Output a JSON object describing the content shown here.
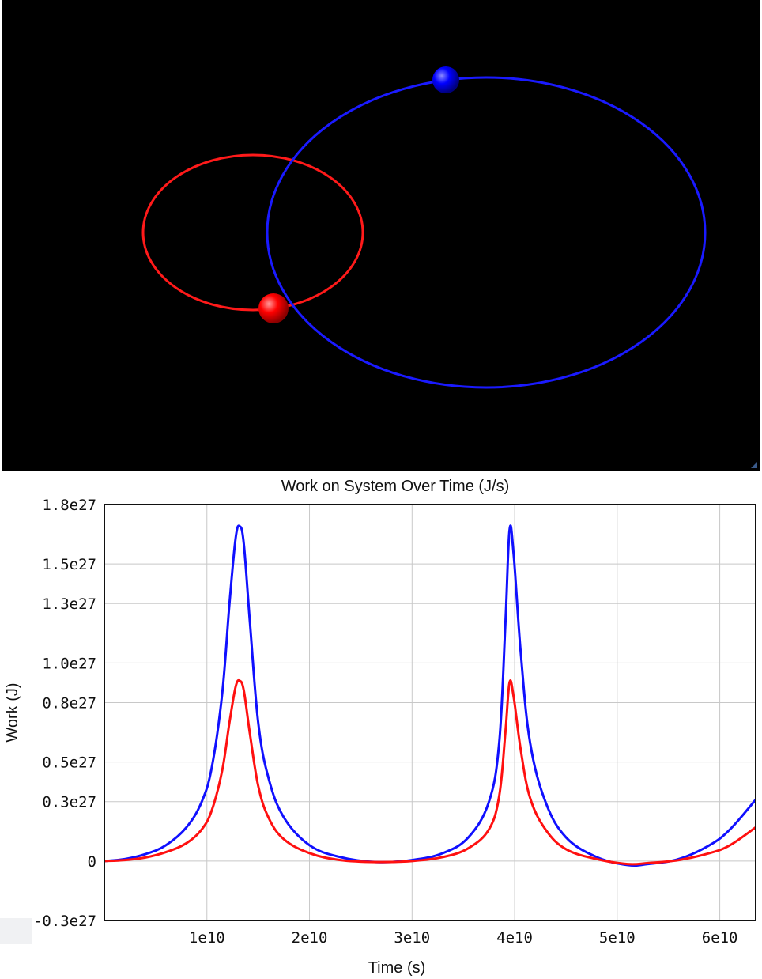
{
  "scene": {
    "background": "#000000",
    "orbits": [
      {
        "name": "red-orbit",
        "color": "#ff1a1a"
      },
      {
        "name": "blue-orbit",
        "color": "#1a1aff"
      }
    ],
    "bodies": [
      {
        "name": "red-body",
        "color": "#ff0000"
      },
      {
        "name": "blue-body",
        "color": "#0000ff"
      }
    ]
  },
  "chart_data": {
    "type": "line",
    "title": "Work on System Over Time (J/s)",
    "xlabel": "Time (s)",
    "ylabel": "Work (J)",
    "xlim": [
      0,
      63500000000.0
    ],
    "ylim": [
      -3e+26,
      1.8e+27
    ],
    "x_ticks": [
      10000000000.0,
      20000000000.0,
      30000000000.0,
      40000000000.0,
      50000000000.0,
      60000000000.0
    ],
    "x_tick_labels": [
      "1e10",
      "2e10",
      "3e10",
      "4e10",
      "5e10",
      "6e10"
    ],
    "y_ticks": [
      -3e+26,
      0,
      3e+26,
      5e+26,
      8e+26,
      1e+27,
      1.3e+27,
      1.5e+27,
      1.8e+27
    ],
    "y_tick_labels": [
      "-0.3e27",
      "0",
      "0.3e27",
      "0.5e27",
      "0.8e27",
      "1.0e27",
      "1.3e27",
      "1.5e27",
      "1.8e27"
    ],
    "grid": true,
    "series": [
      {
        "color": "#1010ff",
        "x": [
          0,
          2000000000.0,
          4000000000.0,
          6000000000.0,
          8000000000.0,
          9500000000.0,
          10500000000.0,
          11500000000.0,
          12200000000.0,
          12800000000.0,
          13200000000.0,
          13600000000.0,
          14200000000.0,
          15000000000.0,
          16000000000.0,
          17500000000.0,
          20000000000.0,
          23000000000.0,
          26500000000.0,
          30000000000.0,
          33000000000.0,
          35500000000.0,
          37500000000.0,
          38500000000.0,
          39100000000.0,
          39500000000.0,
          39900000000.0,
          40600000000.0,
          41500000000.0,
          43000000000.0,
          45000000000.0,
          48000000000.0,
          51000000000.0,
          53000000000.0,
          56000000000.0,
          59000000000.0,
          61000000000.0,
          63500000000.0
        ],
        "y": [
          0.0,
          1e+25,
          3.5e+25,
          8e+25,
          1.7e+26,
          3e+26,
          4.8e+26,
          8.5e+26,
          1.3e+27,
          1.63e+27,
          1.69e+27,
          1.6e+27,
          1.2e+27,
          7e+26,
          4.2e+26,
          2.2e+26,
          8e+25,
          2e+25,
          -5e+24,
          5e+24,
          4e+25,
          1.2e+26,
          3e+26,
          6e+26,
          1.2e+27,
          1.67e+27,
          1.55e+27,
          1.05e+27,
          6e+26,
          3e+26,
          1.2e+26,
          2e+25,
          -2e+25,
          -1.5e+25,
          1e+25,
          8e+25,
          1.6e+26,
          3.1e+26
        ]
      },
      {
        "color": "#ff1010",
        "x": [
          0,
          2000000000.0,
          4000000000.0,
          6000000000.0,
          8000000000.0,
          9500000000.0,
          10500000000.0,
          11500000000.0,
          12200000000.0,
          12800000000.0,
          13200000000.0,
          13600000000.0,
          14200000000.0,
          15000000000.0,
          16000000000.0,
          17500000000.0,
          20000000000.0,
          23000000000.0,
          26500000000.0,
          30000000000.0,
          33000000000.0,
          35500000000.0,
          37500000000.0,
          38500000000.0,
          39100000000.0,
          39500000000.0,
          39900000000.0,
          40600000000.0,
          41500000000.0,
          43000000000.0,
          45000000000.0,
          48000000000.0,
          51000000000.0,
          53000000000.0,
          56000000000.0,
          59000000000.0,
          61000000000.0,
          63500000000.0
        ],
        "y": [
          0.0,
          5e+24,
          1.8e+25,
          4.5e+25,
          9e+25,
          1.6e+26,
          2.6e+26,
          4.6e+26,
          7e+26,
          8.8e+26,
          9.1e+26,
          8.6e+26,
          6.4e+26,
          3.8e+26,
          2.2e+26,
          1.1e+26,
          4e+25,
          5e+24,
          -5e+24,
          0.0,
          2e+25,
          6.5e+25,
          1.6e+26,
          3.3e+26,
          6.5e+26,
          9e+26,
          8.3e+26,
          5.6e+26,
          3.2e+26,
          1.6e+26,
          6e+25,
          1e+25,
          -1.5e+25,
          -1e+25,
          5e+24,
          4e+25,
          8e+25,
          1.7e+26
        ]
      }
    ]
  }
}
